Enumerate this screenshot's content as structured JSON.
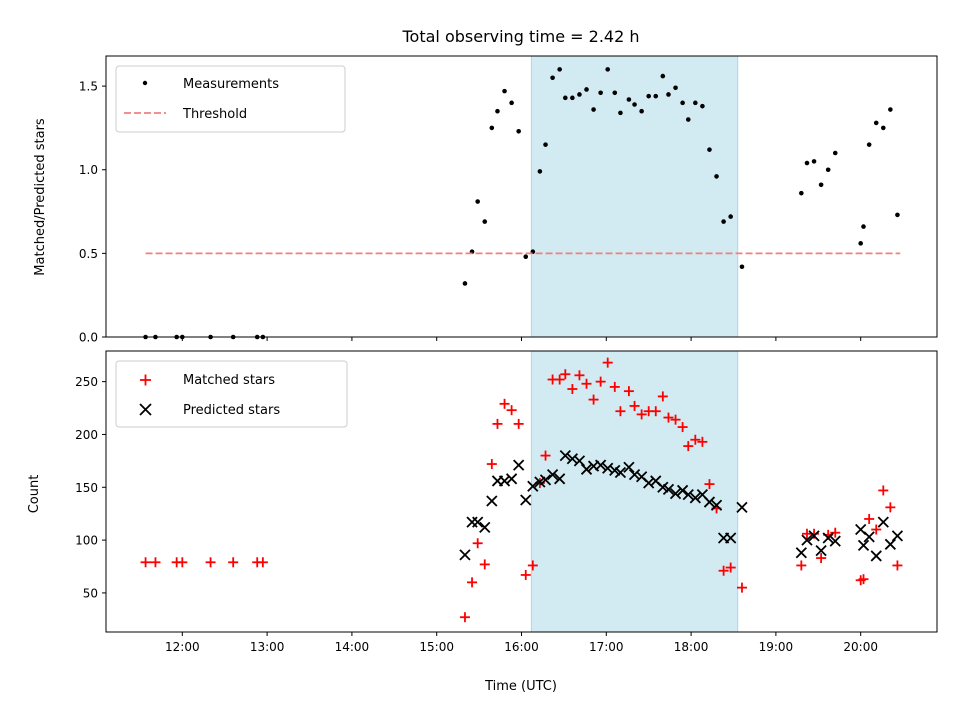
{
  "chart_data": [
    {
      "type": "scatter",
      "title": "Total observing time = 2.42 h",
      "xlabel": "",
      "ylabel": "Matched/Predicted stars",
      "xlim": [
        "11:06",
        "20:54"
      ],
      "ylim": [
        0,
        1.68
      ],
      "yticks": [
        "0.0",
        "0.5",
        "1.0",
        "1.5"
      ],
      "legend_position": "upper-left",
      "shaded_interval": {
        "start": "16:07",
        "end": "18:33",
        "color": "#add8e6"
      },
      "series": [
        {
          "name": "Measurements",
          "marker": "dot",
          "color": "#000000",
          "points": [
            [
              "11:34",
              0.0
            ],
            [
              "11:41",
              0.0
            ],
            [
              "11:56",
              0.0
            ],
            [
              "12:00",
              0.0
            ],
            [
              "12:20",
              0.0
            ],
            [
              "12:36",
              0.0
            ],
            [
              "12:53",
              0.0
            ],
            [
              "12:57",
              0.0
            ],
            [
              "15:20",
              0.32
            ],
            [
              "15:25",
              0.51
            ],
            [
              "15:29",
              0.81
            ],
            [
              "15:34",
              0.69
            ],
            [
              "15:39",
              1.25
            ],
            [
              "15:43",
              1.35
            ],
            [
              "15:48",
              1.47
            ],
            [
              "15:53",
              1.4
            ],
            [
              "15:58",
              1.23
            ],
            [
              "16:03",
              0.48
            ],
            [
              "16:08",
              0.51
            ],
            [
              "16:13",
              0.99
            ],
            [
              "16:17",
              1.15
            ],
            [
              "16:22",
              1.55
            ],
            [
              "16:27",
              1.6
            ],
            [
              "16:31",
              1.43
            ],
            [
              "16:36",
              1.43
            ],
            [
              "16:41",
              1.45
            ],
            [
              "16:46",
              1.48
            ],
            [
              "16:51",
              1.36
            ],
            [
              "16:56",
              1.46
            ],
            [
              "17:01",
              1.6
            ],
            [
              "17:06",
              1.46
            ],
            [
              "17:10",
              1.34
            ],
            [
              "17:16",
              1.42
            ],
            [
              "17:20",
              1.39
            ],
            [
              "17:25",
              1.35
            ],
            [
              "17:30",
              1.44
            ],
            [
              "17:35",
              1.44
            ],
            [
              "17:40",
              1.56
            ],
            [
              "17:44",
              1.45
            ],
            [
              "17:49",
              1.49
            ],
            [
              "17:54",
              1.4
            ],
            [
              "17:58",
              1.3
            ],
            [
              "18:03",
              1.4
            ],
            [
              "18:08",
              1.38
            ],
            [
              "18:13",
              1.12
            ],
            [
              "18:18",
              0.96
            ],
            [
              "18:23",
              0.69
            ],
            [
              "18:28",
              0.72
            ],
            [
              "18:36",
              0.42
            ],
            [
              "19:18",
              0.86
            ],
            [
              "19:22",
              1.04
            ],
            [
              "19:27",
              1.05
            ],
            [
              "19:32",
              0.91
            ],
            [
              "19:37",
              1.0
            ],
            [
              "19:42",
              1.1
            ],
            [
              "20:00",
              0.56
            ],
            [
              "20:02",
              0.66
            ],
            [
              "20:06",
              1.15
            ],
            [
              "20:11",
              1.28
            ],
            [
              "20:16",
              1.25
            ],
            [
              "20:21",
              1.36
            ],
            [
              "20:26",
              0.73
            ]
          ]
        },
        {
          "name": "Threshold",
          "marker": "dashed-line",
          "color": "#f08080",
          "points": [
            [
              "11:34",
              0.5
            ],
            [
              "20:28",
              0.5
            ]
          ]
        }
      ]
    },
    {
      "type": "scatter",
      "title": "",
      "xlabel": "Time (UTC)",
      "ylabel": "Count",
      "xlim": [
        "11:06",
        "20:54"
      ],
      "ylim": [
        13,
        279
      ],
      "yticks": [
        "50",
        "100",
        "150",
        "200",
        "250"
      ],
      "xticks": [
        "12:00",
        "13:00",
        "14:00",
        "15:00",
        "16:00",
        "17:00",
        "18:00",
        "19:00",
        "20:00"
      ],
      "legend_position": "upper-left",
      "shaded_interval": {
        "start": "16:07",
        "end": "18:33",
        "color": "#add8e6"
      },
      "series": [
        {
          "name": "Matched stars",
          "marker": "plus",
          "color": "#ff0000",
          "points": [
            [
              "11:34",
              79
            ],
            [
              "11:41",
              79
            ],
            [
              "11:56",
              79
            ],
            [
              "12:00",
              79
            ],
            [
              "12:20",
              79
            ],
            [
              "12:36",
              79
            ],
            [
              "12:53",
              79
            ],
            [
              "12:57",
              79
            ],
            [
              "15:20",
              27
            ],
            [
              "15:25",
              60
            ],
            [
              "15:29",
              97
            ],
            [
              "15:34",
              77
            ],
            [
              "15:39",
              172
            ],
            [
              "15:43",
              210
            ],
            [
              "15:48",
              229
            ],
            [
              "15:53",
              223
            ],
            [
              "15:58",
              210
            ],
            [
              "16:03",
              67
            ],
            [
              "16:08",
              76
            ],
            [
              "16:13",
              154
            ],
            [
              "16:17",
              180
            ],
            [
              "16:22",
              252
            ],
            [
              "16:27",
              252
            ],
            [
              "16:31",
              257
            ],
            [
              "16:36",
              243
            ],
            [
              "16:41",
              256
            ],
            [
              "16:46",
              248
            ],
            [
              "16:51",
              233
            ],
            [
              "16:56",
              250
            ],
            [
              "17:01",
              268
            ],
            [
              "17:06",
              245
            ],
            [
              "17:10",
              222
            ],
            [
              "17:16",
              241
            ],
            [
              "17:20",
              227
            ],
            [
              "17:25",
              219
            ],
            [
              "17:30",
              222
            ],
            [
              "17:35",
              222
            ],
            [
              "17:40",
              236
            ],
            [
              "17:44",
              216
            ],
            [
              "17:49",
              214
            ],
            [
              "17:54",
              207
            ],
            [
              "17:58",
              189
            ],
            [
              "18:03",
              195
            ],
            [
              "18:08",
              193
            ],
            [
              "18:13",
              153
            ],
            [
              "18:18",
              130
            ],
            [
              "18:23",
              71
            ],
            [
              "18:28",
              74
            ],
            [
              "18:36",
              55
            ],
            [
              "19:18",
              76
            ],
            [
              "19:22",
              106
            ],
            [
              "19:27",
              106
            ],
            [
              "19:32",
              83
            ],
            [
              "19:37",
              105
            ],
            [
              "19:42",
              107
            ],
            [
              "20:00",
              62
            ],
            [
              "20:02",
              63
            ],
            [
              "20:06",
              120
            ],
            [
              "20:11",
              110
            ],
            [
              "20:16",
              147
            ],
            [
              "20:21",
              131
            ],
            [
              "20:26",
              76
            ]
          ]
        },
        {
          "name": "Predicted stars",
          "marker": "x",
          "color": "#000000",
          "points": [
            [
              "15:20",
              86
            ],
            [
              "15:25",
              117
            ],
            [
              "15:29",
              117
            ],
            [
              "15:34",
              112
            ],
            [
              "15:39",
              137
            ],
            [
              "15:43",
              156
            ],
            [
              "15:48",
              156
            ],
            [
              "15:53",
              158
            ],
            [
              "15:58",
              171
            ],
            [
              "16:03",
              138
            ],
            [
              "16:08",
              151
            ],
            [
              "16:13",
              155
            ],
            [
              "16:17",
              157
            ],
            [
              "16:22",
              162
            ],
            [
              "16:27",
              158
            ],
            [
              "16:31",
              180
            ],
            [
              "16:36",
              177
            ],
            [
              "16:41",
              175
            ],
            [
              "16:46",
              167
            ],
            [
              "16:51",
              170
            ],
            [
              "16:56",
              171
            ],
            [
              "17:01",
              168
            ],
            [
              "17:06",
              166
            ],
            [
              "17:10",
              164
            ],
            [
              "17:16",
              169
            ],
            [
              "17:20",
              162
            ],
            [
              "17:25",
              160
            ],
            [
              "17:30",
              154
            ],
            [
              "17:35",
              156
            ],
            [
              "17:40",
              150
            ],
            [
              "17:44",
              148
            ],
            [
              "17:49",
              144
            ],
            [
              "17:54",
              147
            ],
            [
              "17:58",
              143
            ],
            [
              "18:03",
              140
            ],
            [
              "18:08",
              143
            ],
            [
              "18:13",
              136
            ],
            [
              "18:18",
              133
            ],
            [
              "18:23",
              102
            ],
            [
              "18:28",
              102
            ],
            [
              "18:36",
              131
            ],
            [
              "19:18",
              88
            ],
            [
              "19:22",
              100
            ],
            [
              "19:27",
              104
            ],
            [
              "19:32",
              90
            ],
            [
              "19:37",
              102
            ],
            [
              "19:42",
              99
            ],
            [
              "20:00",
              110
            ],
            [
              "20:02",
              95
            ],
            [
              "20:06",
              103
            ],
            [
              "20:11",
              85
            ],
            [
              "20:16",
              117
            ],
            [
              "20:21",
              96
            ],
            [
              "20:26",
              104
            ]
          ]
        }
      ]
    }
  ]
}
